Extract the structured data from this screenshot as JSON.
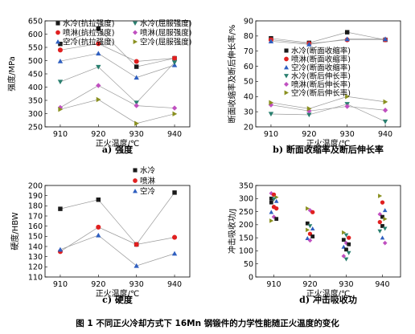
{
  "figure_caption": "图 1  不同正火冷却方式下 16Mn 钢锻件的力学性能随正火温度的变化",
  "colors": {
    "水冷": "#1a1a1a",
    "喷淋": "#e02020",
    "空冷": "#2f5fc0",
    "水冷_b": "#2a7f6f",
    "喷淋_b": "#c050c0",
    "空冷_b": "#8a9020",
    "line": "#9a9a9a"
  },
  "chart_data": [
    {
      "type": "line",
      "caption": "a) 强度",
      "xlabel": "正火温度/℃",
      "ylabel": "强度/MPa",
      "x": [
        910,
        920,
        930,
        940
      ],
      "xlim": [
        906,
        944
      ],
      "ylim": [
        250,
        650
      ],
      "yticks": [
        250,
        300,
        350,
        400,
        450,
        500,
        550,
        600,
        650
      ],
      "legend_placement": "top",
      "series": [
        {
          "name": "水冷(抗拉强度)",
          "marker": "square",
          "color_key": "水冷",
          "values": [
            563,
            621,
            477,
            509
          ]
        },
        {
          "name": "喷淋(抗拉强度)",
          "marker": "circle",
          "color_key": "喷淋",
          "values": [
            540,
            564,
            497,
            509
          ]
        },
        {
          "name": "空冷(抗拉强度)",
          "marker": "triangle-up",
          "color_key": "空冷",
          "values": [
            498,
            527,
            436,
            483
          ]
        },
        {
          "name": "水冷(屈服强度)",
          "marker": "triangle-down",
          "color_key": "水冷_b",
          "values": [
            420,
            476,
            341,
            493
          ]
        },
        {
          "name": "喷淋(屈服强度)",
          "marker": "diamond",
          "color_key": "喷淋_b",
          "values": [
            323,
            406,
            330,
            321
          ]
        },
        {
          "name": "空冷(屈服强度)",
          "marker": "triangle-right",
          "color_key": "空冷_b",
          "values": [
            316,
            353,
            263,
            299
          ]
        }
      ]
    },
    {
      "type": "line",
      "caption": "b) 断面收缩率及断后伸长率",
      "xlabel": "正火温度/℃",
      "ylabel": "断面收缩率及断后伸长率/%",
      "x": [
        910,
        920,
        930,
        940
      ],
      "xlim": [
        906,
        944
      ],
      "ylim": [
        20,
        90
      ],
      "yticks": [
        20,
        30,
        40,
        50,
        60,
        70,
        80,
        90
      ],
      "legend_placement": "right",
      "series": [
        {
          "name": "水冷(断面收缩率)",
          "marker": "square",
          "color_key": "水冷",
          "values": [
            78.5,
            75.5,
            82.5,
            77.5
          ]
        },
        {
          "name": "喷淋(断面收缩率)",
          "marker": "circle",
          "color_key": "喷淋",
          "values": [
            77.5,
            75.0,
            77.5,
            77.5
          ]
        },
        {
          "name": "空冷(断面收缩率)",
          "marker": "triangle-up",
          "color_key": "空冷",
          "values": [
            76.5,
            74.5,
            78.0,
            78.0
          ]
        },
        {
          "name": "水冷(断后伸长率)",
          "marker": "triangle-down",
          "color_key": "水冷_b",
          "values": [
            28.5,
            28.0,
            35.0,
            23.5
          ]
        },
        {
          "name": "喷淋(断后伸长率)",
          "marker": "diamond",
          "color_key": "喷淋_b",
          "values": [
            34.5,
            30.5,
            33.5,
            31.0
          ]
        },
        {
          "name": "空冷(断后伸长率)",
          "marker": "triangle-right",
          "color_key": "空冷_b",
          "values": [
            36.0,
            32.0,
            40.0,
            36.5
          ]
        }
      ]
    },
    {
      "type": "line",
      "caption": "c) 硬度",
      "xlabel": "正火温度/℃",
      "ylabel": "硬度/HBW",
      "x": [
        910,
        920,
        930,
        940
      ],
      "xlim": [
        906,
        944
      ],
      "ylim": [
        110,
        200
      ],
      "yticks": [
        110,
        120,
        130,
        140,
        150,
        160,
        170,
        180,
        190,
        200
      ],
      "legend_placement": "top-right",
      "series": [
        {
          "name": "水冷",
          "marker": "square",
          "color_key": "水冷",
          "values": [
            177,
            186,
            142,
            193
          ]
        },
        {
          "name": "喷淋",
          "marker": "circle",
          "color_key": "喷淋",
          "values": [
            135,
            159,
            142,
            149
          ]
        },
        {
          "name": "空冷",
          "marker": "triangle-up",
          "color_key": "空冷",
          "values": [
            137,
            151,
            121,
            133
          ]
        }
      ]
    },
    {
      "type": "scatter",
      "caption": "d) 冲击吸收功",
      "xlabel": "正火温度/℃",
      "ylabel": "冲击吸收功/J",
      "x": [
        910,
        920,
        930,
        940
      ],
      "xlim": [
        905,
        945
      ],
      "ylim": [
        0,
        350
      ],
      "yticks": [
        0,
        50,
        100,
        150,
        200,
        250,
        300,
        350
      ],
      "points": [
        {
          "x": 910,
          "y": 320,
          "marker": "diamond",
          "color_key": "喷淋_b"
        },
        {
          "x": 910,
          "y": 315,
          "marker": "circle",
          "color_key": "喷淋"
        },
        {
          "x": 910,
          "y": 305,
          "marker": "triangle-right",
          "color_key": "空冷_b"
        },
        {
          "x": 910,
          "y": 300,
          "marker": "square",
          "color_key": "水冷"
        },
        {
          "x": 910,
          "y": 298,
          "marker": "triangle-down",
          "color_key": "水冷_b"
        },
        {
          "x": 910,
          "y": 290,
          "marker": "triangle-up",
          "color_key": "空冷"
        },
        {
          "x": 910,
          "y": 285,
          "marker": "square",
          "color_key": "水冷"
        },
        {
          "x": 910,
          "y": 268,
          "marker": "circle",
          "color_key": "喷淋"
        },
        {
          "x": 910,
          "y": 262,
          "marker": "circle",
          "color_key": "喷淋"
        },
        {
          "x": 910,
          "y": 248,
          "marker": "triangle-up",
          "color_key": "空冷"
        },
        {
          "x": 910,
          "y": 230,
          "marker": "diamond",
          "color_key": "喷淋_b"
        },
        {
          "x": 910,
          "y": 222,
          "marker": "square",
          "color_key": "水冷"
        },
        {
          "x": 910,
          "y": 215,
          "marker": "triangle-right",
          "color_key": "空冷_b"
        },
        {
          "x": 920,
          "y": 262,
          "marker": "triangle-right",
          "color_key": "空冷_b"
        },
        {
          "x": 920,
          "y": 255,
          "marker": "diamond",
          "color_key": "喷淋_b"
        },
        {
          "x": 920,
          "y": 248,
          "marker": "circle",
          "color_key": "喷淋"
        },
        {
          "x": 920,
          "y": 205,
          "marker": "square",
          "color_key": "水冷"
        },
        {
          "x": 920,
          "y": 195,
          "marker": "triangle-down",
          "color_key": "水冷_b"
        },
        {
          "x": 920,
          "y": 185,
          "marker": "triangle-up",
          "color_key": "空冷"
        },
        {
          "x": 920,
          "y": 180,
          "marker": "triangle-right",
          "color_key": "空冷_b"
        },
        {
          "x": 920,
          "y": 165,
          "marker": "circle",
          "color_key": "喷淋"
        },
        {
          "x": 920,
          "y": 155,
          "marker": "square",
          "color_key": "水冷"
        },
        {
          "x": 920,
          "y": 148,
          "marker": "triangle-up",
          "color_key": "空冷"
        },
        {
          "x": 920,
          "y": 140,
          "marker": "diamond",
          "color_key": "喷淋_b"
        },
        {
          "x": 930,
          "y": 170,
          "marker": "triangle-right",
          "color_key": "空冷_b"
        },
        {
          "x": 930,
          "y": 160,
          "marker": "triangle-down",
          "color_key": "水冷_b"
        },
        {
          "x": 930,
          "y": 150,
          "marker": "circle",
          "color_key": "喷淋"
        },
        {
          "x": 930,
          "y": 142,
          "marker": "square",
          "color_key": "水冷"
        },
        {
          "x": 930,
          "y": 130,
          "marker": "diamond",
          "color_key": "喷淋_b"
        },
        {
          "x": 930,
          "y": 125,
          "marker": "square",
          "color_key": "水冷"
        },
        {
          "x": 930,
          "y": 115,
          "marker": "triangle-up",
          "color_key": "空冷"
        },
        {
          "x": 930,
          "y": 105,
          "marker": "square",
          "color_key": "水冷"
        },
        {
          "x": 930,
          "y": 92,
          "marker": "triangle-down",
          "color_key": "水冷_b"
        },
        {
          "x": 930,
          "y": 80,
          "marker": "diamond",
          "color_key": "喷淋_b"
        },
        {
          "x": 930,
          "y": 68,
          "marker": "triangle-down",
          "color_key": "水冷_b"
        },
        {
          "x": 940,
          "y": 310,
          "marker": "triangle-right",
          "color_key": "空冷_b"
        },
        {
          "x": 940,
          "y": 285,
          "marker": "circle",
          "color_key": "喷淋"
        },
        {
          "x": 940,
          "y": 255,
          "marker": "triangle-up",
          "color_key": "空冷"
        },
        {
          "x": 940,
          "y": 240,
          "marker": "diamond",
          "color_key": "喷淋_b"
        },
        {
          "x": 940,
          "y": 230,
          "marker": "square",
          "color_key": "水冷"
        },
        {
          "x": 940,
          "y": 222,
          "marker": "triangle-right",
          "color_key": "空冷_b"
        },
        {
          "x": 940,
          "y": 210,
          "marker": "circle",
          "color_key": "喷淋"
        },
        {
          "x": 940,
          "y": 195,
          "marker": "square",
          "color_key": "水冷"
        },
        {
          "x": 940,
          "y": 185,
          "marker": "triangle-down",
          "color_key": "水冷_b"
        },
        {
          "x": 940,
          "y": 175,
          "marker": "triangle-down",
          "color_key": "水冷_b"
        },
        {
          "x": 940,
          "y": 150,
          "marker": "triangle-up",
          "color_key": "空冷"
        },
        {
          "x": 940,
          "y": 130,
          "marker": "diamond",
          "color_key": "喷淋_b"
        }
      ]
    }
  ]
}
